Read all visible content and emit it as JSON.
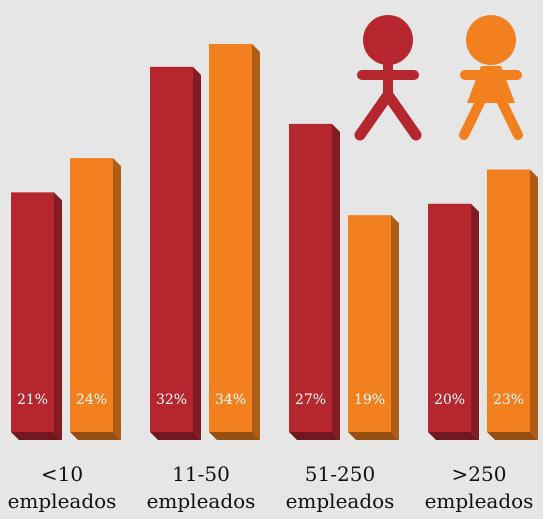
{
  "chart_data": {
    "type": "bar",
    "title": "",
    "xlabel": "",
    "ylabel": "",
    "categories": [
      [
        "<10",
        "empleados"
      ],
      [
        "11-50",
        "empleados"
      ],
      [
        "51-250",
        "empleados"
      ],
      [
        ">250",
        "empleados"
      ]
    ],
    "series": [
      {
        "icon": "male-figure-icon",
        "color": "#b5262f",
        "values": [
          21,
          32,
          27,
          20
        ],
        "labels": [
          "21%",
          "32%",
          "27%",
          "20%"
        ]
      },
      {
        "icon": "female-figure-icon",
        "color": "#f2801f",
        "values": [
          24,
          34,
          19,
          23
        ],
        "labels": [
          "24%",
          "34%",
          "19%",
          "23%"
        ]
      }
    ],
    "ylim": [
      0,
      34
    ],
    "grid": false,
    "legend": "top-right, pictograms"
  }
}
